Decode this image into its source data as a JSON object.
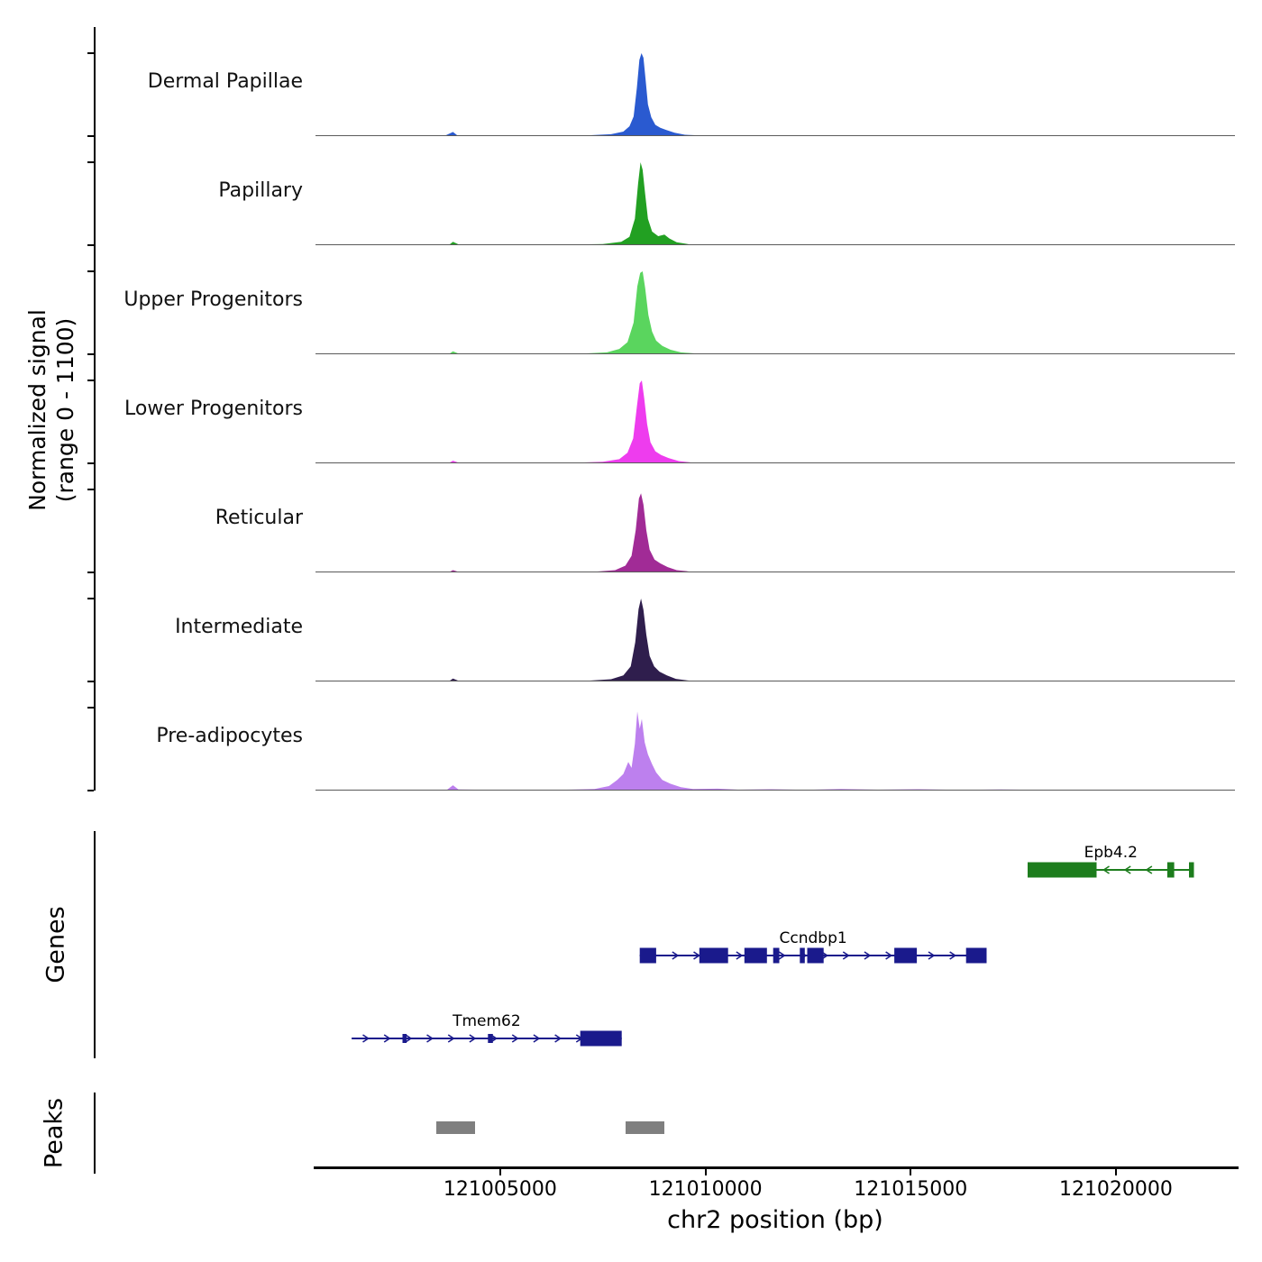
{
  "sections": {
    "signal": {
      "ylabel_line1": "Normalized signal",
      "ylabel_line2": "(range 0 - 1100)"
    },
    "genes_label": "Genes",
    "peaks_label": "Peaks"
  },
  "chart_data": {
    "type": "area",
    "title": "",
    "xlabel": "chr2 position (bp)",
    "ylabel": "Normalized signal (range 0 - 1100)",
    "x_range": [
      121000500,
      121022900
    ],
    "y_range_per_track": [
      0,
      1100
    ],
    "x_ticks": [
      {
        "pos": 121005000,
        "label": "121005000"
      },
      {
        "pos": 121010000,
        "label": "121010000"
      },
      {
        "pos": 121015000,
        "label": "121015000"
      },
      {
        "pos": 121020000,
        "label": "121020000"
      }
    ],
    "tracks": [
      {
        "name": "Dermal Papillae",
        "color": "#2a5ad0",
        "points": [
          [
            121000500,
            2
          ],
          [
            121001600,
            4
          ],
          [
            121002600,
            3
          ],
          [
            121003650,
            5
          ],
          [
            121003850,
            55
          ],
          [
            121003950,
            12
          ],
          [
            121004600,
            4
          ],
          [
            121005600,
            6
          ],
          [
            121006400,
            8
          ],
          [
            121007200,
            12
          ],
          [
            121007700,
            25
          ],
          [
            121008000,
            60
          ],
          [
            121008150,
            130
          ],
          [
            121008250,
            260
          ],
          [
            121008330,
            640
          ],
          [
            121008390,
            1010
          ],
          [
            121008440,
            1100
          ],
          [
            121008490,
            1040
          ],
          [
            121008540,
            760
          ],
          [
            121008600,
            420
          ],
          [
            121008680,
            250
          ],
          [
            121008780,
            150
          ],
          [
            121008900,
            110
          ],
          [
            121009050,
            80
          ],
          [
            121009250,
            45
          ],
          [
            121009500,
            18
          ],
          [
            121009900,
            8
          ],
          [
            121010800,
            5
          ],
          [
            121012500,
            4
          ],
          [
            121015000,
            3
          ],
          [
            121018000,
            3
          ],
          [
            121021000,
            2
          ],
          [
            121022900,
            2
          ]
        ]
      },
      {
        "name": "Papillary",
        "color": "#22a022",
        "points": [
          [
            121000500,
            2
          ],
          [
            121002000,
            3
          ],
          [
            121003750,
            4
          ],
          [
            121003850,
            45
          ],
          [
            121004000,
            6
          ],
          [
            121005500,
            5
          ],
          [
            121006800,
            8
          ],
          [
            121007500,
            15
          ],
          [
            121007950,
            45
          ],
          [
            121008150,
            110
          ],
          [
            121008280,
            350
          ],
          [
            121008360,
            820
          ],
          [
            121008420,
            1100
          ],
          [
            121008470,
            1000
          ],
          [
            121008530,
            680
          ],
          [
            121008600,
            350
          ],
          [
            121008700,
            180
          ],
          [
            121008850,
            120
          ],
          [
            121009000,
            140
          ],
          [
            121009120,
            90
          ],
          [
            121009300,
            40
          ],
          [
            121009600,
            12
          ],
          [
            121010500,
            5
          ],
          [
            121013000,
            4
          ],
          [
            121017000,
            3
          ],
          [
            121020500,
            5
          ],
          [
            121021500,
            8
          ],
          [
            121022900,
            3
          ]
        ]
      },
      {
        "name": "Upper Progenitors",
        "color": "#5ad55e",
        "points": [
          [
            121000500,
            2
          ],
          [
            121002500,
            3
          ],
          [
            121003750,
            4
          ],
          [
            121003850,
            40
          ],
          [
            121004000,
            5
          ],
          [
            121005800,
            6
          ],
          [
            121007000,
            10
          ],
          [
            121007600,
            25
          ],
          [
            121007900,
            70
          ],
          [
            121008100,
            160
          ],
          [
            121008250,
            420
          ],
          [
            121008340,
            900
          ],
          [
            121008410,
            1080
          ],
          [
            121008470,
            1100
          ],
          [
            121008530,
            880
          ],
          [
            121008610,
            520
          ],
          [
            121008700,
            300
          ],
          [
            121008800,
            180
          ],
          [
            121008950,
            110
          ],
          [
            121009150,
            60
          ],
          [
            121009400,
            25
          ],
          [
            121009800,
            8
          ],
          [
            121011500,
            5
          ],
          [
            121014000,
            3
          ],
          [
            121018000,
            3
          ],
          [
            121022900,
            2
          ]
        ]
      },
      {
        "name": "Lower Progenitors",
        "color": "#ee3cee",
        "points": [
          [
            121000500,
            2
          ],
          [
            121002200,
            4
          ],
          [
            121003750,
            5
          ],
          [
            121003850,
            35
          ],
          [
            121004000,
            6
          ],
          [
            121005500,
            8
          ],
          [
            121006900,
            10
          ],
          [
            121007500,
            20
          ],
          [
            121007900,
            55
          ],
          [
            121008100,
            140
          ],
          [
            121008240,
            330
          ],
          [
            121008330,
            750
          ],
          [
            121008400,
            1060
          ],
          [
            121008450,
            1100
          ],
          [
            121008510,
            860
          ],
          [
            121008580,
            520
          ],
          [
            121008660,
            280
          ],
          [
            121008780,
            160
          ],
          [
            121008920,
            110
          ],
          [
            121009100,
            70
          ],
          [
            121009350,
            30
          ],
          [
            121009700,
            10
          ],
          [
            121011000,
            6
          ],
          [
            121013500,
            4
          ],
          [
            121016500,
            4
          ],
          [
            121020000,
            3
          ],
          [
            121022900,
            3
          ]
        ]
      },
      {
        "name": "Reticular",
        "color": "#a12b96",
        "points": [
          [
            121000500,
            2
          ],
          [
            121002500,
            3
          ],
          [
            121003750,
            4
          ],
          [
            121003850,
            30
          ],
          [
            121004000,
            5
          ],
          [
            121006000,
            6
          ],
          [
            121007300,
            10
          ],
          [
            121007800,
            30
          ],
          [
            121008050,
            90
          ],
          [
            121008200,
            220
          ],
          [
            121008300,
            560
          ],
          [
            121008380,
            980
          ],
          [
            121008430,
            1050
          ],
          [
            121008490,
            900
          ],
          [
            121008560,
            560
          ],
          [
            121008640,
            300
          ],
          [
            121008760,
            170
          ],
          [
            121008900,
            120
          ],
          [
            121009080,
            70
          ],
          [
            121009300,
            30
          ],
          [
            121009650,
            10
          ],
          [
            121011000,
            5
          ],
          [
            121014000,
            3
          ],
          [
            121018000,
            3
          ],
          [
            121022900,
            2
          ]
        ]
      },
      {
        "name": "Intermediate",
        "color": "#2f1e4d",
        "points": [
          [
            121000500,
            2
          ],
          [
            121002000,
            3
          ],
          [
            121003750,
            4
          ],
          [
            121003850,
            40
          ],
          [
            121004000,
            5
          ],
          [
            121005800,
            6
          ],
          [
            121007100,
            10
          ],
          [
            121007700,
            30
          ],
          [
            121008000,
            80
          ],
          [
            121008180,
            200
          ],
          [
            121008290,
            520
          ],
          [
            121008370,
            960
          ],
          [
            121008430,
            1100
          ],
          [
            121008490,
            950
          ],
          [
            121008560,
            620
          ],
          [
            121008640,
            340
          ],
          [
            121008750,
            200
          ],
          [
            121008880,
            130
          ],
          [
            121009060,
            80
          ],
          [
            121009280,
            35
          ],
          [
            121009600,
            12
          ],
          [
            121010800,
            5
          ],
          [
            121013000,
            4
          ],
          [
            121017000,
            3
          ],
          [
            121022900,
            2
          ]
        ]
      },
      {
        "name": "Pre-adipocytes",
        "color": "#bd80ee",
        "points": [
          [
            121000500,
            3
          ],
          [
            121001700,
            8
          ],
          [
            121002600,
            5
          ],
          [
            121003700,
            10
          ],
          [
            121003850,
            70
          ],
          [
            121003980,
            15
          ],
          [
            121004800,
            8
          ],
          [
            121005800,
            10
          ],
          [
            121006600,
            12
          ],
          [
            121007300,
            20
          ],
          [
            121007650,
            60
          ],
          [
            121007850,
            140
          ],
          [
            121008000,
            220
          ],
          [
            121008120,
            380
          ],
          [
            121008200,
            300
          ],
          [
            121008280,
            620
          ],
          [
            121008340,
            1050
          ],
          [
            121008400,
            820
          ],
          [
            121008450,
            950
          ],
          [
            121008520,
            640
          ],
          [
            121008600,
            480
          ],
          [
            121008700,
            350
          ],
          [
            121008800,
            240
          ],
          [
            121008950,
            140
          ],
          [
            121009150,
            90
          ],
          [
            121009400,
            45
          ],
          [
            121009700,
            20
          ],
          [
            121010300,
            25
          ],
          [
            121010800,
            12
          ],
          [
            121011600,
            18
          ],
          [
            121012400,
            10
          ],
          [
            121013300,
            22
          ],
          [
            121014200,
            12
          ],
          [
            121015200,
            18
          ],
          [
            121016200,
            10
          ],
          [
            121017200,
            15
          ],
          [
            121018300,
            8
          ],
          [
            121019500,
            12
          ],
          [
            121020800,
            8
          ],
          [
            121022000,
            10
          ],
          [
            121022900,
            5
          ]
        ]
      }
    ],
    "genes": [
      {
        "name": "Epb4.2",
        "strand": "-",
        "color": "#1d7d1d",
        "row": 0,
        "start": 121017850,
        "end": 121021900,
        "exons": [
          {
            "start": 121017850,
            "end": 121019530,
            "style": "thick"
          },
          {
            "start": 121021250,
            "end": 121021420,
            "style": "thick"
          },
          {
            "start": 121021780,
            "end": 121021900,
            "style": "thick"
          }
        ]
      },
      {
        "name": "Ccndbp1",
        "strand": "+",
        "color": "#1a1a8c",
        "row": 1,
        "start": 121008400,
        "end": 121016850,
        "exons": [
          {
            "start": 121008400,
            "end": 121008800,
            "style": "thick"
          },
          {
            "start": 121009850,
            "end": 121010550,
            "style": "thick"
          },
          {
            "start": 121010950,
            "end": 121011500,
            "style": "thick"
          },
          {
            "start": 121011650,
            "end": 121011800,
            "style": "thick"
          },
          {
            "start": 121012300,
            "end": 121012420,
            "style": "thick"
          },
          {
            "start": 121012480,
            "end": 121012880,
            "style": "thick"
          },
          {
            "start": 121014600,
            "end": 121015150,
            "style": "thick"
          },
          {
            "start": 121016350,
            "end": 121016850,
            "style": "thick"
          }
        ]
      },
      {
        "name": "Tmem62",
        "strand": "+",
        "color": "#1a1a8c",
        "row": 2,
        "start": 121001380,
        "end": 121007960,
        "exons": [
          {
            "start": 121002620,
            "end": 121002720,
            "style": "thin"
          },
          {
            "start": 121004700,
            "end": 121004820,
            "style": "thin"
          },
          {
            "start": 121006950,
            "end": 121007960,
            "style": "thick"
          }
        ]
      }
    ],
    "peak_regions": [
      {
        "start": 121003440,
        "end": 121004390
      },
      {
        "start": 121008060,
        "end": 121009000
      }
    ],
    "peak_color": "#7f7f7f"
  }
}
